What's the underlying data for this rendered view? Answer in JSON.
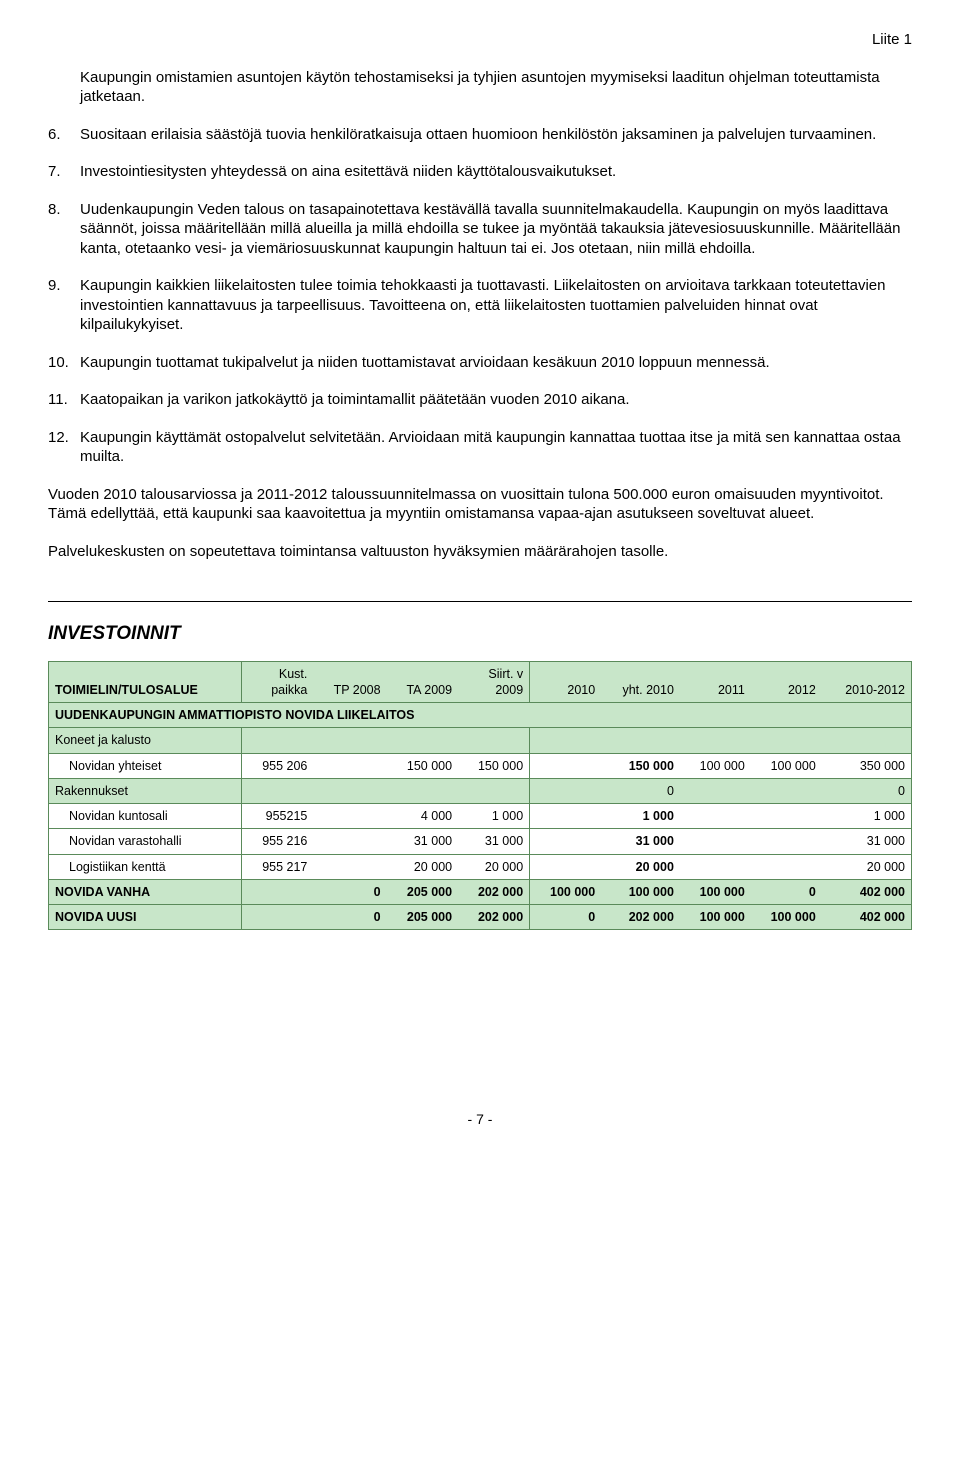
{
  "header_right": "Liite 1",
  "list": [
    {
      "n": "",
      "text": "Kaupungin omistamien asuntojen käytön tehostamiseksi ja tyhjien asuntojen myymiseksi laaditun ohjelman toteuttamista jatketaan."
    },
    {
      "n": "6.",
      "text": "Suositaan erilaisia säästöjä tuovia henkilöratkaisuja ottaen huomioon henkilöstön jaksaminen ja palvelujen turvaaminen."
    },
    {
      "n": "7.",
      "text": "Investointiesitysten yhteydessä on aina esitettävä niiden käyttötalousvaikutukset."
    },
    {
      "n": "8.",
      "text": "Uudenkaupungin Veden talous on tasapainotettava kestävällä tavalla suunnitelmakaudella. Kaupungin on myös laadittava säännöt, joissa määritellään millä alueilla ja millä ehdoilla se tukee ja myöntää takauksia jätevesiosuuskunnille. Määritellään kanta, otetaanko vesi- ja viemäriosuuskunnat kaupungin haltuun tai ei. Jos otetaan, niin millä ehdoilla."
    },
    {
      "n": "9.",
      "text": "Kaupungin kaikkien liikelaitosten tulee toimia tehokkaasti ja tuottavasti. Liikelaitosten on arvioitava tarkkaan toteutettavien investointien kannattavuus ja tarpeellisuus. Tavoitteena on, että liikelaitosten tuottamien palveluiden hinnat ovat kilpailukykyiset."
    },
    {
      "n": "10.",
      "text": " Kaupungin tuottamat tukipalvelut ja niiden tuottamistavat arvioidaan kesäkuun 2010 loppuun mennessä."
    },
    {
      "n": "11.",
      "text": "Kaatopaikan ja varikon jatkokäyttö ja toimintamallit päätetään vuoden 2010 aikana."
    },
    {
      "n": "12.",
      "text": "Kaupungin käyttämät ostopalvelut selvitetään. Arvioidaan mitä kaupungin kannattaa tuottaa itse ja mitä sen kannattaa ostaa muilta."
    }
  ],
  "para1": "Vuoden 2010 talousarviossa ja 2011-2012 taloussuunnitelmassa on vuosittain tulona 500.000 euron omaisuuden myyntivoitot. Tämä edellyttää, että kaupunki saa kaavoitettua ja myyntiin  omistamansa vapaa-ajan asutukseen soveltuvat alueet.",
  "para2": "Palvelukeskusten on sopeutettava toimintansa valtuuston hyväksymien määrärahojen tasolle.",
  "section_title": "INVESTOINNIT",
  "table": {
    "columns": [
      "TOIMIELIN/TULOSALUE",
      "Kust. paikka",
      "TP 2008",
      "TA 2009",
      "Siirt. v 2009",
      "2010",
      "yht. 2010",
      "2011",
      "2012",
      "2010-2012"
    ],
    "title_row": "UUDENKAUPUNGIN AMMATTIOPISTO NOVIDA LIIKELAITOS",
    "groups": [
      {
        "label": "Koneet ja kalusto",
        "rows": [
          [
            "Novidan yhteiset",
            "955 206",
            "",
            "150 000",
            "150 000",
            "",
            "150 000",
            "100 000",
            "100 000",
            "350 000"
          ]
        ]
      },
      {
        "label": "Rakennukset",
        "group_values": [
          "",
          "",
          "",
          "",
          "",
          "0",
          "",
          "",
          "0"
        ],
        "rows": [
          [
            "Novidan kuntosali",
            "955215",
            "",
            "4 000",
            "1 000",
            "",
            "1 000",
            "",
            "",
            "1 000"
          ],
          [
            "Novidan varastohalli",
            "955 216",
            "",
            "31 000",
            "31 000",
            "",
            "31 000",
            "",
            "",
            "31 000"
          ],
          [
            "Logistiikan kenttä",
            "955 217",
            "",
            "20 000",
            "20 000",
            "",
            "20 000",
            "",
            "",
            "20 000"
          ]
        ]
      }
    ],
    "totals": [
      [
        "NOVIDA VANHA",
        "",
        "0",
        "205 000",
        "202 000",
        "100 000",
        "100 000",
        "100 000",
        "0",
        "402 000"
      ],
      [
        "NOVIDA UUSI",
        "",
        "0",
        "205 000",
        "202 000",
        "0",
        "202 000",
        "100 000",
        "100 000",
        "402 000"
      ]
    ]
  },
  "footer": "- 7 -"
}
